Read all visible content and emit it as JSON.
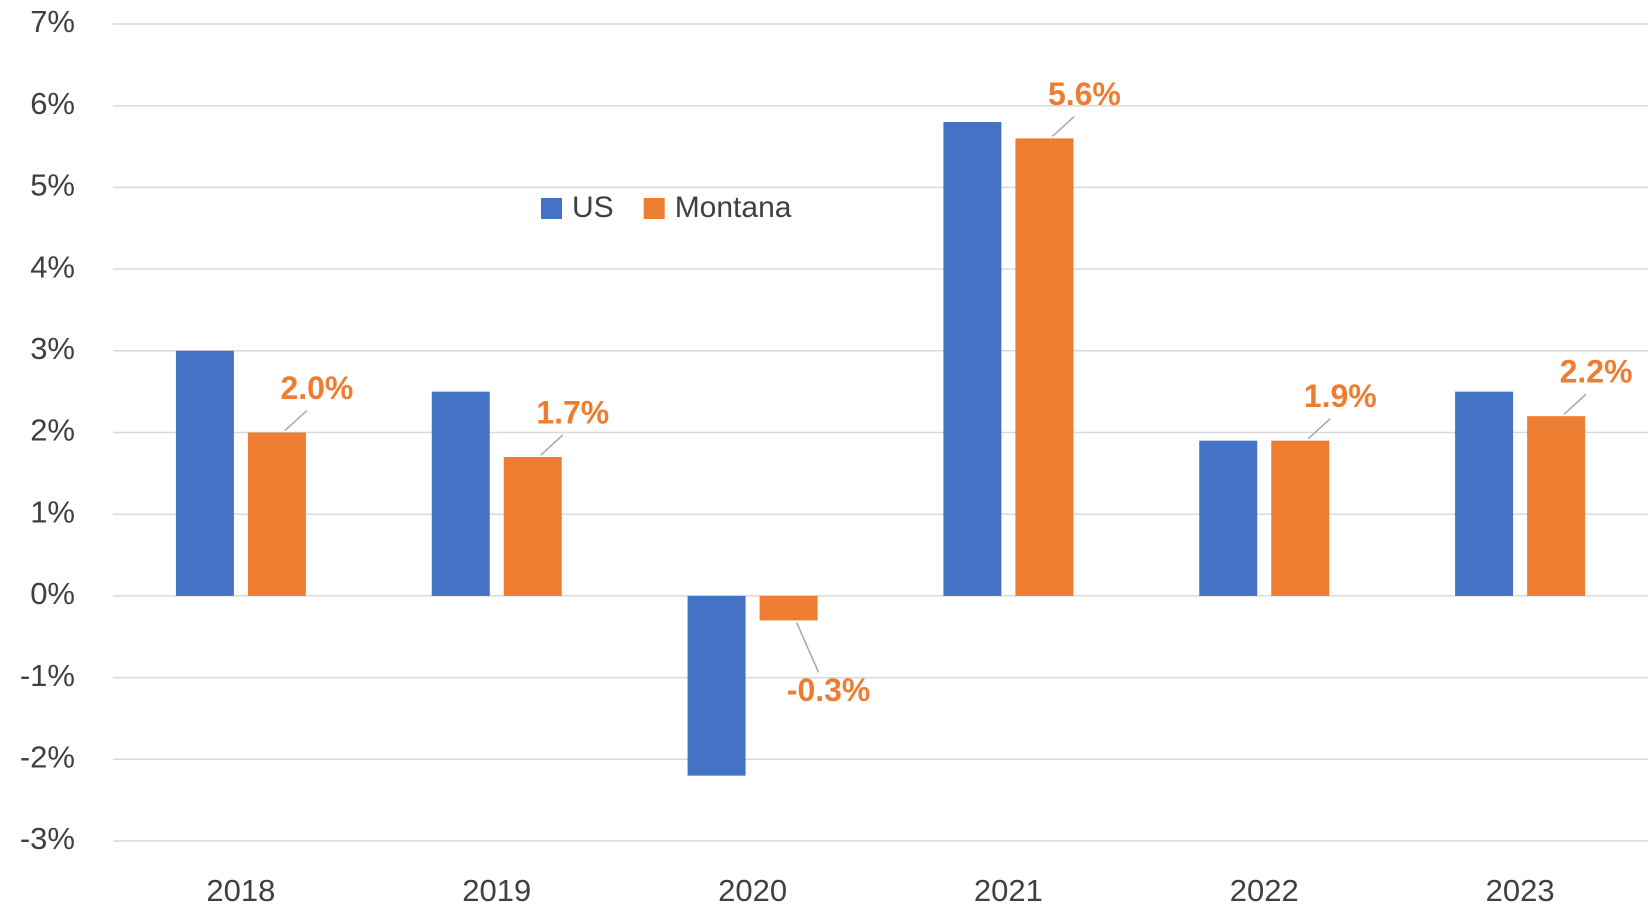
{
  "chart_data": {
    "type": "bar",
    "categories": [
      "2018",
      "2019",
      "2020",
      "2021",
      "2022",
      "2023"
    ],
    "series": [
      {
        "name": "US",
        "color": "#4472c4",
        "values": [
          3.0,
          2.5,
          -2.2,
          5.8,
          1.9,
          2.5
        ]
      },
      {
        "name": "Montana",
        "color": "#ed7d31",
        "values": [
          2.0,
          1.7,
          -0.3,
          5.6,
          1.9,
          2.2
        ],
        "value_labels": [
          "2.0%",
          "1.7%",
          "-0.3%",
          "5.6%",
          "1.9%",
          "2.2%"
        ]
      }
    ],
    "ylim": [
      -3,
      7
    ],
    "yticks": [
      {
        "value": -3,
        "label": "-3%"
      },
      {
        "value": -2,
        "label": "-2%"
      },
      {
        "value": -1,
        "label": "-1%"
      },
      {
        "value": 0,
        "label": "0%"
      },
      {
        "value": 1,
        "label": "1%"
      },
      {
        "value": 2,
        "label": "2%"
      },
      {
        "value": 3,
        "label": "3%"
      },
      {
        "value": 4,
        "label": "4%"
      },
      {
        "value": 5,
        "label": "5%"
      },
      {
        "value": 6,
        "label": "6%"
      },
      {
        "value": 7,
        "label": "7%"
      }
    ],
    "grid": true
  }
}
